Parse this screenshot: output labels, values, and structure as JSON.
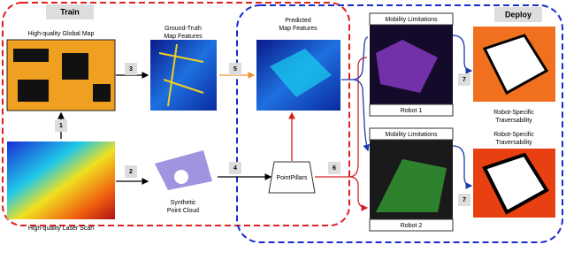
{
  "train_label": "Train",
  "deploy_label": "Deploy",
  "panels": {
    "global_map": "High-quality Global Map",
    "laser_scan": "High-quality Laser Scan",
    "gt_features": [
      "Ground-Truth",
      "Map Features"
    ],
    "point_cloud": [
      "Synthetic",
      "Point Cloud"
    ],
    "predicted": [
      "Predicted",
      "Map Features"
    ],
    "network": "PointPillars"
  },
  "robots": [
    {
      "header": "Mobility Limitations",
      "name": "Robot 1",
      "output": [
        "Robot-Specific",
        "Traversability"
      ]
    },
    {
      "header": "Mobility Limitations",
      "name": "Robot 2",
      "output": [
        "Robot-Specific",
        "Traversability"
      ]
    }
  ],
  "steps": [
    "1",
    "2",
    "3",
    "4",
    "5",
    "6",
    "7",
    "7"
  ]
}
